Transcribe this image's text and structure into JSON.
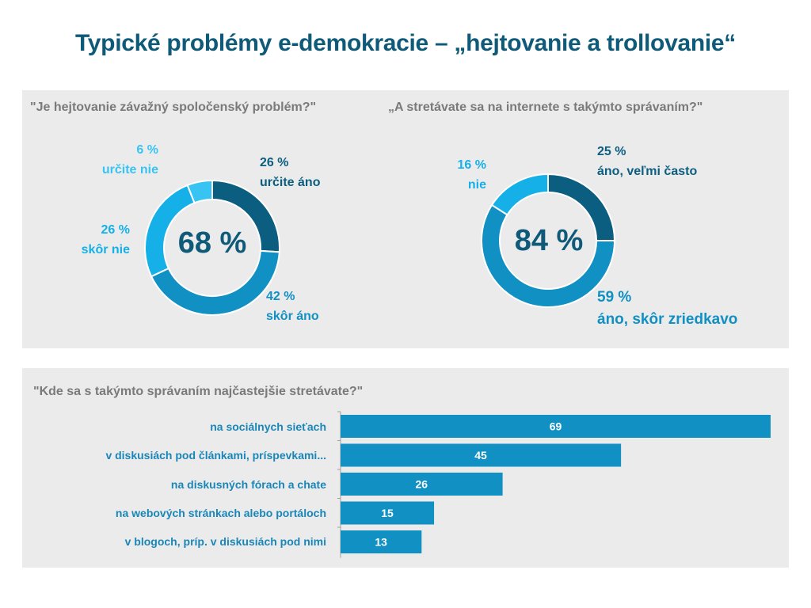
{
  "page": {
    "title": "Typické problémy e-demokracie – „hejtovanie a trollovanie“"
  },
  "colors": {
    "darkest": "#0b5e80",
    "mid": "#1190c4",
    "light": "#16b0e8",
    "lightest": "#38c4f2",
    "bar": "#1190c4",
    "panel": "#ebebeb",
    "question": "#7a7a7a"
  },
  "chart_data": [
    {
      "type": "pie",
      "donut": true,
      "title": "\"Je hejtovanie závažný spoločenský problém?\"",
      "center_label": "68 %",
      "slices": [
        {
          "name": "určite áno",
          "value": 26,
          "value_label": "26 %",
          "color": "#0b5e80"
        },
        {
          "name": "skôr áno",
          "value": 42,
          "value_label": "42 %",
          "color": "#1190c4"
        },
        {
          "name": "skôr nie",
          "value": 26,
          "value_label": "26 %",
          "color": "#16b0e8"
        },
        {
          "name": "určite nie",
          "value": 6,
          "value_label": "6 %",
          "color": "#38c4f2"
        }
      ]
    },
    {
      "type": "pie",
      "donut": true,
      "title": "„A stretávate sa na internete s takýmto správaním?\"",
      "center_label": "84 %",
      "slices": [
        {
          "name": "áno, veľmi často",
          "value": 25,
          "value_label": "25 %",
          "color": "#0b5e80"
        },
        {
          "name": "áno, skôr zriedkavo",
          "value": 59,
          "value_label": "59 %",
          "color": "#1190c4"
        },
        {
          "name": "nie",
          "value": 16,
          "value_label": "16 %",
          "color": "#16b0e8"
        }
      ]
    },
    {
      "type": "bar",
      "orientation": "horizontal",
      "title": "\"Kde sa s takýmto správaním najčastejšie stretávate?\"",
      "categories": [
        "na sociálnych sieťach",
        "v diskusiách pod článkami, príspevkami...",
        "na diskusných fórach a chate",
        "na webových stránkach alebo portáloch",
        "v blogoch, príp. v diskusiách pod nimi"
      ],
      "values": [
        69,
        45,
        26,
        15,
        13
      ],
      "xlim": [
        0,
        69
      ],
      "grid": false
    }
  ]
}
